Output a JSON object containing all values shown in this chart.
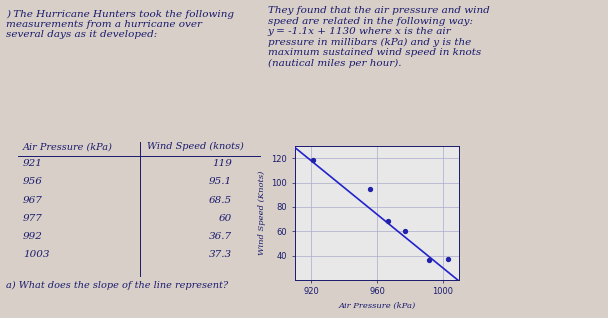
{
  "title_left_line1": ") The Hurricane Hunters took the following",
  "title_left_line2": "measurements from a hurricane over",
  "title_left_line3": "several days as it developed:",
  "title_right_line1": "They found that the air pressure and wind",
  "title_right_line2": "speed are related in the following way:",
  "title_right_line3": "y = -1.1x + 1130 where x is the air",
  "title_right_line4": "pressure in millibars (kPa) and y is the",
  "title_right_line5": "maximum sustained wind speed in knots",
  "title_right_line6": "(nautical miles per hour).",
  "table_header": [
    "Air Pressure (kPa)",
    "Wind Speed (knots)"
  ],
  "table_data": [
    [
      921,
      119
    ],
    [
      956,
      95.1
    ],
    [
      967,
      68.5
    ],
    [
      977,
      60
    ],
    [
      992,
      36.7
    ],
    [
      1003,
      37.3
    ]
  ],
  "scatter_x": [
    921,
    956,
    967,
    977,
    992,
    1003
  ],
  "scatter_y": [
    119,
    95.1,
    68.5,
    60,
    36.7,
    37.3
  ],
  "line_x": [
    910,
    1010
  ],
  "slope": -1.1,
  "intercept": 1130,
  "xlabel": "Air Pressure (kPa)",
  "ylabel": "Wind Speed (Knots)",
  "xlim": [
    910,
    1010
  ],
  "ylim": [
    20,
    130
  ],
  "xticks": [
    920,
    960,
    1000
  ],
  "yticks": [
    40,
    60,
    80,
    100,
    120
  ],
  "question": "a) What does the slope of the line represent?",
  "bg_color": "#d8d0c8",
  "plot_bg": "#e8e8e8",
  "text_color": "#1a1a6e",
  "scatter_color": "#2222aa",
  "line_color": "#2222cc",
  "grid_color": "#aaaacc",
  "font_size_body": 7.5,
  "font_size_table": 7.5,
  "font_size_axis": 6,
  "font_size_question": 7
}
